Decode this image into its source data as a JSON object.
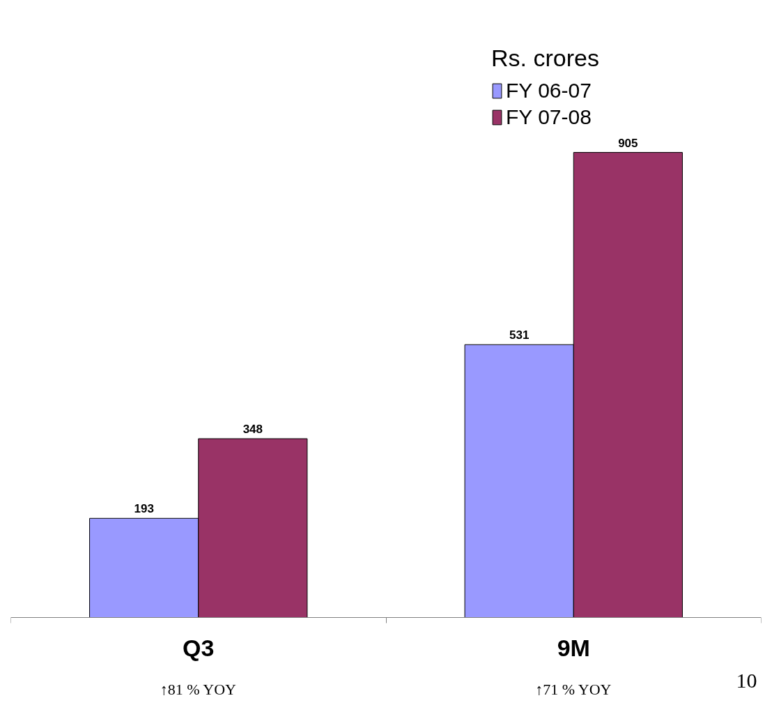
{
  "chart_data": {
    "type": "bar",
    "categories": [
      "Q3",
      "9M"
    ],
    "series": [
      {
        "name": "FY 06-07",
        "color": "#9999ff",
        "values": [
          193,
          531
        ]
      },
      {
        "name": "FY 07-08",
        "color": "#993366",
        "values": [
          348,
          905
        ]
      }
    ],
    "legend_title": "Rs. crores",
    "legend": "top right",
    "data_labels": true,
    "grid": false,
    "tick_labels": "x",
    "annotations": [
      "↑81 % YOY",
      "↑71 % YOY",
      "10"
    ]
  }
}
